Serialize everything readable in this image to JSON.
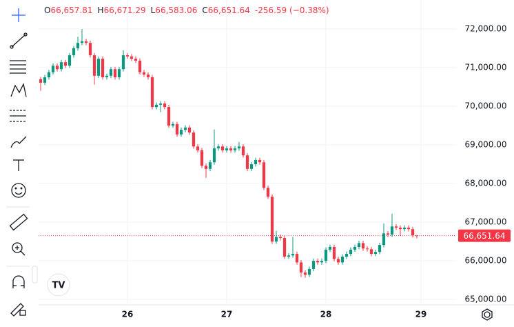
{
  "chart_data": {
    "type": "candlestick",
    "header": {
      "open_key": "O",
      "open": "66,657.81",
      "high_key": "H",
      "high": "66,671.29",
      "low_key": "L",
      "low": "66,583.06",
      "close_key": "C",
      "close": "66,651.64",
      "change": "-256.59 (−0.38%)"
    },
    "open": [
      70700,
      70610,
      70750,
      70880,
      71050,
      70960,
      71140,
      71050,
      71320,
      71500,
      71640,
      71680,
      71640,
      71320,
      70790,
      71230,
      70750,
      70790,
      70960,
      70750,
      70960,
      71320,
      71290,
      71230,
      71180,
      70880,
      70820,
      70750,
      69980,
      70040,
      70070,
      69980,
      69500,
      69540,
      69270,
      69390,
      69450,
      69320,
      68960,
      68860,
      68460,
      68380,
      68550,
      68910,
      68960,
      68860,
      68910,
      68860,
      68910,
      68960,
      68730,
      68380,
      68500,
      68610,
      68550,
      67890,
      67660,
      66500,
      66620,
      66590,
      66110,
      66140,
      66180,
      65960,
      65700,
      65640,
      65790,
      66000,
      65960,
      66000,
      66290,
      66360,
      66050,
      65960,
      66110,
      66180,
      66290,
      66360,
      66460,
      66320,
      66300,
      66180,
      66230,
      66410,
      66710,
      66680,
      66890,
      66860,
      66820,
      66860,
      66820,
      66657.81
    ],
    "high": [
      70760,
      70810,
      70940,
      71110,
      71110,
      71200,
      71200,
      71380,
      71560,
      71800,
      72000,
      71740,
      71700,
      71380,
      71290,
      71290,
      70850,
      71020,
      71020,
      71020,
      71450,
      71380,
      71350,
      71290,
      71240,
      70940,
      70880,
      70810,
      70100,
      70130,
      70130,
      70040,
      69600,
      69600,
      69450,
      69510,
      69510,
      69380,
      69020,
      68920,
      68520,
      68610,
      69400,
      69020,
      69020,
      68970,
      68970,
      68970,
      69080,
      69020,
      68790,
      68560,
      68670,
      68670,
      68610,
      67950,
      67720,
      66780,
      66680,
      66650,
      66200,
      66620,
      66240,
      66020,
      65760,
      65850,
      66060,
      66060,
      66060,
      66350,
      66420,
      66420,
      66110,
      66170,
      66240,
      66350,
      66420,
      66520,
      66520,
      66380,
      66360,
      66290,
      66470,
      66970,
      66770,
      67220,
      66950,
      66920,
      66920,
      66920,
      66880,
      66671.29
    ],
    "low": [
      70400,
      70550,
      70690,
      70820,
      70900,
      70900,
      70990,
      70990,
      71260,
      71440,
      71580,
      71580,
      71260,
      70560,
      70730,
      70690,
      70690,
      70730,
      70690,
      70690,
      70900,
      71230,
      71170,
      71120,
      70820,
      70760,
      70690,
      69920,
      69920,
      69850,
      69920,
      69440,
      69440,
      69210,
      69210,
      69330,
      69260,
      68900,
      68800,
      68400,
      68150,
      68320,
      68490,
      68850,
      68800,
      68800,
      68800,
      68800,
      68850,
      68670,
      68320,
      68320,
      68440,
      68490,
      67830,
      67600,
      66440,
      66440,
      66530,
      66050,
      66050,
      66080,
      65900,
      65580,
      65560,
      65580,
      65730,
      65900,
      65900,
      65940,
      66230,
      65990,
      65900,
      65900,
      66050,
      66120,
      66230,
      66300,
      66260,
      66240,
      66120,
      66120,
      66170,
      66350,
      66620,
      66620,
      66800,
      66640,
      66760,
      66760,
      66600,
      66583.06
    ],
    "close": [
      70610,
      70750,
      70880,
      71050,
      70960,
      71140,
      71050,
      71320,
      71500,
      71640,
      71680,
      71640,
      71320,
      70790,
      71230,
      70750,
      70790,
      70960,
      70750,
      70960,
      71320,
      71290,
      71230,
      71180,
      70880,
      70820,
      70750,
      69980,
      70040,
      70070,
      69980,
      69500,
      69540,
      69270,
      69390,
      69450,
      69320,
      68960,
      68860,
      68460,
      68380,
      68550,
      68910,
      68960,
      68860,
      68910,
      68860,
      68910,
      68960,
      68730,
      68380,
      68500,
      68610,
      68550,
      67890,
      67660,
      66500,
      66620,
      66590,
      66110,
      66140,
      66180,
      65960,
      65700,
      65640,
      65790,
      66000,
      65960,
      66000,
      66290,
      66360,
      66050,
      65960,
      66110,
      66180,
      66290,
      66360,
      66460,
      66320,
      66300,
      66180,
      66230,
      66410,
      66710,
      66680,
      66890,
      66860,
      66820,
      66860,
      66820,
      66660,
      66651.64
    ],
    "up_color": "#089981",
    "down_color": "#f23645",
    "price_line_color": "#f23645",
    "xlim": [
      -0.5,
      100.5
    ],
    "xticks": [
      {
        "value": 21,
        "label": "26"
      },
      {
        "value": 45,
        "label": "27"
      },
      {
        "value": 69,
        "label": "28"
      },
      {
        "value": 92,
        "label": "29"
      }
    ],
    "ylim": [
      64860,
      72750
    ],
    "yticks": [
      {
        "value": 65000,
        "label": "65,000.00"
      },
      {
        "value": 66000,
        "label": "66,000.00"
      },
      {
        "value": 67000,
        "label": "67,000.00"
      },
      {
        "value": 68000,
        "label": "68,000.00"
      },
      {
        "value": 69000,
        "label": "69,000.00"
      },
      {
        "value": 70000,
        "label": "70,000.00"
      },
      {
        "value": 71000,
        "label": "71,000.00"
      },
      {
        "value": 72000,
        "label": "72,000.00"
      }
    ],
    "grid": true
  }
}
